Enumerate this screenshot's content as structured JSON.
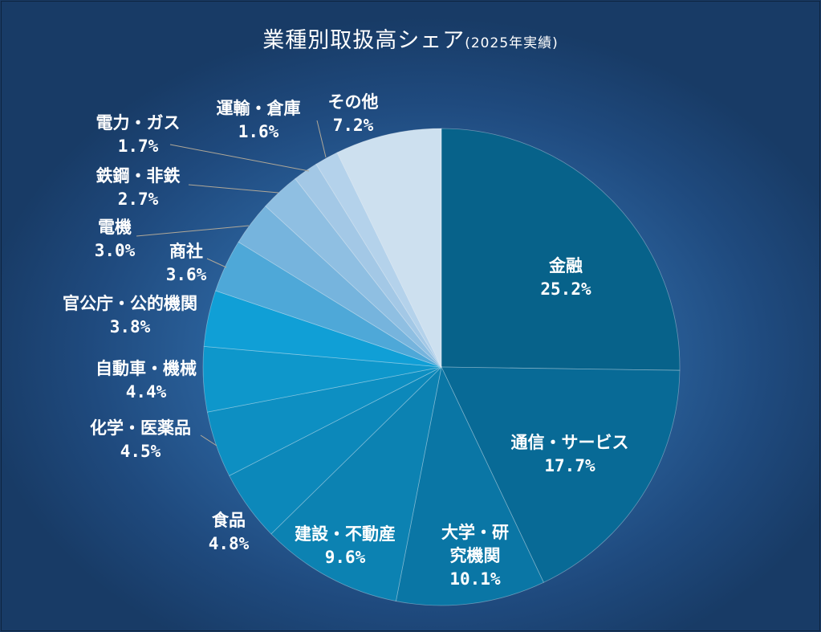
{
  "chart_data": {
    "type": "pie",
    "title": "業種別取扱高シェア",
    "subtitle": "(2025年実績)",
    "start": "12 o'clock, clockwise",
    "slices": [
      {
        "label": "金融",
        "value": 25.2,
        "display": "25.2%",
        "color": "#07628a"
      },
      {
        "label": "通信・サービス",
        "value": 17.7,
        "display": "17.7%",
        "color": "#086a96"
      },
      {
        "label": "大学・研究機関",
        "lines": [
          "大学・研",
          "究機関"
        ],
        "value": 10.1,
        "display": "10.1%",
        "color": "#0a76a5"
      },
      {
        "label": "建設・不動産",
        "value": 9.6,
        "display": "9.6%",
        "color": "#0c82b2"
      },
      {
        "label": "食品",
        "value": 4.8,
        "display": "4.8%",
        "color": "#0c88ba"
      },
      {
        "label": "化学・医薬品",
        "value": 4.5,
        "display": "4.5%",
        "color": "#0d8fc2"
      },
      {
        "label": "自動車・機械",
        "value": 4.4,
        "display": "4.4%",
        "color": "#0e97cb"
      },
      {
        "label": "官公庁・公的機関",
        "value": 3.8,
        "display": "3.8%",
        "color": "#109fd6"
      },
      {
        "label": "商社",
        "value": 3.6,
        "display": "3.6%",
        "color": "#4ea8d8"
      },
      {
        "label": "電機",
        "value": 3.0,
        "display": "3.0%",
        "color": "#76b4dd"
      },
      {
        "label": "鉄鋼・非鉄",
        "value": 2.7,
        "display": "2.7%",
        "color": "#8fbfe2"
      },
      {
        "label": "電力・ガス",
        "value": 1.7,
        "display": "1.7%",
        "color": "#a3c8e6"
      },
      {
        "label": "運輸・倉庫",
        "value": 1.6,
        "display": "1.6%",
        "color": "#b4d2eb"
      },
      {
        "label": "その他",
        "value": 7.2,
        "display": "7.2%",
        "color": "#cde0ef"
      }
    ]
  }
}
